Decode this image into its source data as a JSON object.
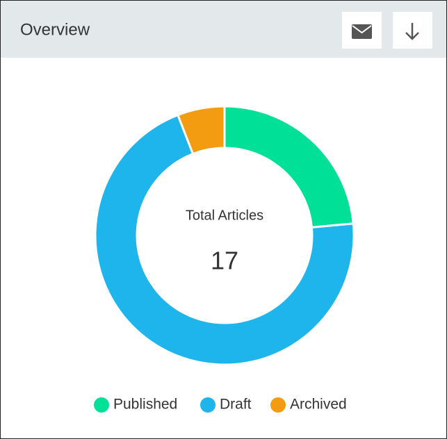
{
  "chart_data": {
    "type": "donut",
    "title": "Overview",
    "center_label": "Total Articles",
    "total": 17,
    "categories": [
      "Published",
      "Draft",
      "Archived"
    ],
    "values": [
      4,
      12,
      1
    ],
    "colors": [
      "#00e096",
      "#1eb4ec",
      "#f39c12"
    ]
  }
}
